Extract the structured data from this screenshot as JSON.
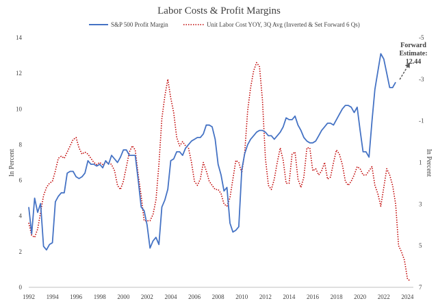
{
  "chart_data": {
    "type": "line",
    "title": "Labor Costs & Profit Margins",
    "ylabel": "In Percent",
    "y2label": "In Percent",
    "ylim": [
      0,
      14
    ],
    "y2lim": [
      7,
      -5
    ],
    "xlim": [
      1992,
      2024.5
    ],
    "y_ticks": [
      0,
      2,
      4,
      6,
      8,
      10,
      12,
      14
    ],
    "y2_ticks": [
      7,
      5,
      3,
      1,
      -1,
      -3,
      -5
    ],
    "x_ticks": [
      1992,
      1994,
      1996,
      1998,
      2000,
      2002,
      2004,
      2006,
      2008,
      2010,
      2012,
      2014,
      2016,
      2018,
      2020,
      2022,
      2024
    ],
    "legend_position": "top",
    "series": [
      {
        "name": "S&P 500 Profit Margin",
        "axis": "left",
        "color": "#4472c4",
        "style": "solid",
        "x": [
          1992.0,
          1992.25,
          1992.5,
          1992.75,
          1993.0,
          1993.25,
          1993.5,
          1993.75,
          1994.0,
          1994.25,
          1994.5,
          1994.75,
          1995.0,
          1995.25,
          1995.5,
          1995.75,
          1996.0,
          1996.25,
          1996.5,
          1996.75,
          1997.0,
          1997.25,
          1997.5,
          1997.75,
          1998.0,
          1998.25,
          1998.5,
          1998.75,
          1999.0,
          1999.25,
          1999.5,
          1999.75,
          2000.0,
          2000.25,
          2000.5,
          2000.75,
          2001.0,
          2001.25,
          2001.5,
          2001.75,
          2002.0,
          2002.25,
          2002.5,
          2002.75,
          2003.0,
          2003.25,
          2003.5,
          2003.75,
          2004.0,
          2004.25,
          2004.5,
          2004.75,
          2005.0,
          2005.25,
          2005.5,
          2005.75,
          2006.0,
          2006.25,
          2006.5,
          2006.75,
          2007.0,
          2007.25,
          2007.5,
          2007.75,
          2008.0,
          2008.25,
          2008.5,
          2008.75,
          2009.0,
          2009.25,
          2009.5,
          2009.75,
          2010.0,
          2010.25,
          2010.5,
          2010.75,
          2011.0,
          2011.25,
          2011.5,
          2011.75,
          2012.0,
          2012.25,
          2012.5,
          2012.75,
          2013.0,
          2013.25,
          2013.5,
          2013.75,
          2014.0,
          2014.25,
          2014.5,
          2014.75,
          2015.0,
          2015.25,
          2015.5,
          2015.75,
          2016.0,
          2016.25,
          2016.5,
          2016.75,
          2017.0,
          2017.25,
          2017.5,
          2017.75,
          2018.0,
          2018.25,
          2018.5,
          2018.75,
          2019.0,
          2019.25,
          2019.5,
          2019.75,
          2020.0,
          2020.25,
          2020.5,
          2020.75,
          2021.0,
          2021.25,
          2021.5,
          2021.75,
          2022.0,
          2022.25,
          2022.5,
          2022.75,
          2023.0
        ],
        "y": [
          4.5,
          3.0,
          5.0,
          4.2,
          4.7,
          2.3,
          2.1,
          2.4,
          2.5,
          4.8,
          5.1,
          5.3,
          5.3,
          6.4,
          6.5,
          6.5,
          6.2,
          6.1,
          6.2,
          6.4,
          7.1,
          6.9,
          6.9,
          6.8,
          6.9,
          6.7,
          7.1,
          6.9,
          7.4,
          7.2,
          7.0,
          7.3,
          7.7,
          7.7,
          7.4,
          7.4,
          7.4,
          6.0,
          4.5,
          4.3,
          3.5,
          2.2,
          2.6,
          2.8,
          2.4,
          4.5,
          4.9,
          5.5,
          7.1,
          7.2,
          7.6,
          7.6,
          7.4,
          7.8,
          8.0,
          8.2,
          8.3,
          8.4,
          8.4,
          8.6,
          9.1,
          9.1,
          9.0,
          8.3,
          6.9,
          6.3,
          5.4,
          5.6,
          3.6,
          3.1,
          3.2,
          3.4,
          6.6,
          7.5,
          8.0,
          8.3,
          8.5,
          8.7,
          8.8,
          8.8,
          8.7,
          8.5,
          8.5,
          8.3,
          8.5,
          8.7,
          9.0,
          9.5,
          9.4,
          9.4,
          9.6,
          9.1,
          8.8,
          8.4,
          8.2,
          8.1,
          8.1,
          8.2,
          8.5,
          8.8,
          9.0,
          9.2,
          9.2,
          9.1,
          9.4,
          9.7,
          10.0,
          10.2,
          10.2,
          10.1,
          9.8,
          10.1,
          8.8,
          7.6,
          7.6,
          7.3,
          9.3,
          11.1,
          12.1,
          13.1,
          12.8,
          12.0,
          11.2,
          11.2,
          11.5
        ]
      },
      {
        "name": "Unit Labor Cost YOY, 3Q Avg (Inverted & Set Forward 6 Qs)",
        "axis": "right",
        "color": "#c00000",
        "style": "dotted",
        "x": [
          1992.0,
          1992.25,
          1992.5,
          1992.75,
          1993.0,
          1993.25,
          1993.5,
          1993.75,
          1994.0,
          1994.25,
          1994.5,
          1994.75,
          1995.0,
          1995.25,
          1995.5,
          1995.75,
          1996.0,
          1996.25,
          1996.5,
          1996.75,
          1997.0,
          1997.25,
          1997.5,
          1997.75,
          1998.0,
          1998.25,
          1998.5,
          1998.75,
          1999.0,
          1999.25,
          1999.5,
          1999.75,
          2000.0,
          2000.25,
          2000.5,
          2000.75,
          2001.0,
          2001.25,
          2001.5,
          2001.75,
          2002.0,
          2002.25,
          2002.5,
          2002.75,
          2003.0,
          2003.25,
          2003.5,
          2003.75,
          2004.0,
          2004.25,
          2004.5,
          2004.75,
          2005.0,
          2005.25,
          2005.5,
          2005.75,
          2006.0,
          2006.25,
          2006.5,
          2006.75,
          2007.0,
          2007.25,
          2007.5,
          2007.75,
          2008.0,
          2008.25,
          2008.5,
          2008.75,
          2009.0,
          2009.25,
          2009.5,
          2009.75,
          2010.0,
          2010.25,
          2010.5,
          2010.75,
          2011.0,
          2011.25,
          2011.5,
          2011.75,
          2012.0,
          2012.25,
          2012.5,
          2012.75,
          2013.0,
          2013.25,
          2013.5,
          2013.75,
          2014.0,
          2014.25,
          2014.5,
          2014.75,
          2015.0,
          2015.25,
          2015.5,
          2015.75,
          2016.0,
          2016.25,
          2016.5,
          2016.75,
          2017.0,
          2017.25,
          2017.5,
          2017.75,
          2018.0,
          2018.25,
          2018.5,
          2018.75,
          2019.0,
          2019.25,
          2019.5,
          2019.75,
          2020.0,
          2020.25,
          2020.5,
          2020.75,
          2021.0,
          2021.25,
          2021.5,
          2021.75,
          2022.0,
          2022.25,
          2022.5,
          2022.75,
          2023.0,
          2023.25,
          2023.5,
          2023.75,
          2024.0,
          2024.25
        ],
        "y": [
          3.9,
          4.5,
          4.6,
          4.2,
          3.4,
          2.6,
          2.2,
          2.0,
          1.9,
          1.4,
          0.8,
          0.7,
          0.8,
          0.5,
          0.2,
          -0.1,
          -0.2,
          0.3,
          0.6,
          0.5,
          0.6,
          0.8,
          1.0,
          1.1,
          1.0,
          1.1,
          1.0,
          1.0,
          1.1,
          1.4,
          2.1,
          2.3,
          1.9,
          1.2,
          0.5,
          0.2,
          0.4,
          1.6,
          2.6,
          3.8,
          3.8,
          3.8,
          3.5,
          2.8,
          1.1,
          -1.1,
          -2.2,
          -3.0,
          -2.1,
          -1.4,
          -0.2,
          0.2,
          0.0,
          0.2,
          0.3,
          1.0,
          1.9,
          2.1,
          1.8,
          1.0,
          1.4,
          1.9,
          2.1,
          2.3,
          2.3,
          2.5,
          3.0,
          3.1,
          2.7,
          1.8,
          0.9,
          1.0,
          1.5,
          0.5,
          -1.5,
          -2.6,
          -3.4,
          -3.8,
          -3.6,
          -2.0,
          0.8,
          2.1,
          2.3,
          1.8,
          1.0,
          0.3,
          0.9,
          2.0,
          2.0,
          0.6,
          0.5,
          1.8,
          2.2,
          1.7,
          0.3,
          0.3,
          1.4,
          1.3,
          1.6,
          1.4,
          1.0,
          1.8,
          1.7,
          1.0,
          0.4,
          0.6,
          1.1,
          1.9,
          2.1,
          1.9,
          1.6,
          1.2,
          1.3,
          1.6,
          1.6,
          1.4,
          1.2,
          2.1,
          2.5,
          3.1,
          2.2,
          1.3,
          1.6,
          2.1,
          3.0,
          5.0,
          5.3,
          5.7,
          6.6,
          6.7
        ]
      }
    ],
    "annotation": {
      "lines": [
        "Forward",
        "Estimate:",
        "12.44"
      ],
      "arrow_from": [
        2023.0,
        11.5
      ],
      "arrow_to": [
        2024.2,
        12.44
      ]
    }
  }
}
